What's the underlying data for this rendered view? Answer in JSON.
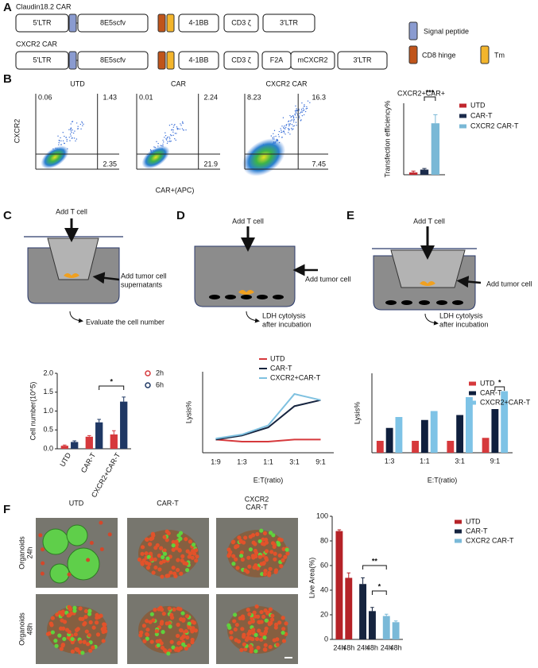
{
  "figure": {
    "panel_labels": [
      "A",
      "B",
      "C",
      "D",
      "E",
      "F"
    ],
    "constructs": [
      {
        "name": "Claudin18.2 CAR",
        "parts": [
          "5'LTR",
          "8E5scfv",
          "4-1BB",
          "CD3 ζ",
          "3'LTR"
        ]
      },
      {
        "name": "CXCR2 CAR",
        "parts": [
          "5'LTR",
          "8E5scfv",
          "4-1BB",
          "CD3 ζ",
          "F2A",
          "mCXCR2",
          "3'LTR"
        ]
      }
    ],
    "construct_legend": [
      "Signal peptide",
      "CD8 hinge",
      "Tm"
    ],
    "flow": {
      "plots": [
        {
          "title": "UTD",
          "quadrants": [
            "0.06",
            "1.43",
            "2.35"
          ]
        },
        {
          "title": "CAR",
          "quadrants": [
            "0.01",
            "2.24",
            "21.9"
          ]
        },
        {
          "title": "CXCR2 CAR",
          "quadrants": [
            "8.23",
            "16.3",
            "7.45"
          ]
        }
      ],
      "y_label": "CXCR2",
      "x_label": "CAR+(APC)"
    },
    "assays": [
      {
        "add_t": "Add T cell",
        "add_tumor": [
          "Add tumor cell",
          "supernatants"
        ],
        "readout": [
          "Evaluate the cell number"
        ]
      },
      {
        "add_t": "Add T cell",
        "add_tumor": [
          "Add tumor cell"
        ],
        "readout": [
          "LDH cytolysis",
          "after incubation"
        ]
      },
      {
        "add_t": "Add T cell",
        "add_tumor": [
          "Add tumor cell"
        ],
        "readout": [
          "LDH cytolysis",
          "after incubation"
        ]
      }
    ],
    "organoids": {
      "columns": [
        [
          "UTD"
        ],
        [
          "CAR-T"
        ],
        [
          "CXCR2",
          "CAR-T"
        ]
      ],
      "rows": [
        [
          "Organoids",
          "24h"
        ],
        [
          "Organoids",
          "48h"
        ]
      ]
    }
  },
  "chart_data": [
    {
      "type": "bar",
      "title": "CXCR2+CAR+",
      "y_label": "Transfection efficiency%",
      "categories": [
        null
      ],
      "ylim": [
        0,
        25
      ],
      "series": [
        {
          "name": "UTD",
          "color": "#c1272d",
          "values": [
            0.8
          ],
          "errors": [
            0.5
          ]
        },
        {
          "name": "CAR-T",
          "color": "#1b2b4b",
          "values": [
            1.8
          ],
          "errors": [
            0.4
          ]
        },
        {
          "name": "CXCR2 CAR-T",
          "color": "#79b8d6",
          "values": [
            18
          ],
          "errors": [
            3
          ]
        }
      ],
      "significance": [
        "***"
      ]
    },
    {
      "type": "bar",
      "y_label": "Cell number(10^5)",
      "categories": [
        "UTD",
        "CAR-T",
        "CXCR2+CAR-T"
      ],
      "ylim": [
        0,
        2
      ],
      "yticks": [
        {
          "value": 0,
          "label": "0.0"
        },
        0.5,
        {
          "value": 1,
          "label": "1.0"
        },
        1.5,
        {
          "value": 2,
          "label": "2.0"
        }
      ],
      "series": [
        {
          "name": "2h",
          "color": "#d6393c",
          "values": [
            0.08,
            0.32,
            0.38
          ],
          "errors": [
            0.02,
            0.03,
            0.1
          ]
        },
        {
          "name": "6h",
          "color": "#1f3864",
          "values": [
            0.18,
            0.7,
            1.25
          ],
          "errors": [
            0.03,
            0.08,
            0.12
          ]
        }
      ],
      "significance": [
        "*"
      ]
    },
    {
      "type": "line",
      "y_label": "Lysis%",
      "x_label": "E:T(ratio)",
      "categories": [
        "1:9",
        "1:3",
        "1:1",
        "3:1",
        "9:1"
      ],
      "ylim": [
        0,
        80
      ],
      "series": [
        {
          "name": "UTD",
          "color": "#d6393c",
          "values": [
            13,
            11,
            11,
            13,
            13
          ]
        },
        {
          "name": "CAR-T",
          "color": "#16243f",
          "values": [
            13,
            17,
            25,
            46,
            52
          ]
        },
        {
          "name": "CXCR2+CAR-T",
          "color": "#7fc1e0",
          "values": [
            14,
            18,
            27,
            58,
            52
          ]
        }
      ]
    },
    {
      "type": "bar",
      "y_label": "Lysis%",
      "x_label": "E:T(ratio)",
      "categories": [
        "1:3",
        "1:1",
        "3:1",
        "9:1"
      ],
      "ylim": [
        0,
        80
      ],
      "series": [
        {
          "name": "UTD",
          "color": "#d6393c",
          "values": [
            12,
            12,
            12,
            15
          ]
        },
        {
          "name": "CAR-T",
          "color": "#0f1f3d",
          "values": [
            25,
            33,
            38,
            44
          ]
        },
        {
          "name": "CXCR2+CAR-T",
          "color": "#7ec3e6",
          "values": [
            36,
            42,
            56,
            62
          ]
        }
      ],
      "significance": [
        "*"
      ]
    },
    {
      "type": "bar",
      "y_label": "Live Area(%)",
      "categories": [
        "24h",
        "48h"
      ],
      "ylim": [
        0,
        100
      ],
      "yticks": [
        0,
        20,
        40,
        60,
        80,
        100
      ],
      "series": [
        {
          "name": "UTD",
          "color": "#b52227",
          "values": [
            88,
            50
          ],
          "errors": [
            1,
            4
          ]
        },
        {
          "name": "CAR-T",
          "color": "#16243f",
          "values": [
            45,
            23
          ],
          "errors": [
            5,
            3
          ]
        },
        {
          "name": "CXCR2 CAR-T",
          "color": "#7ab9d8",
          "values": [
            19,
            14
          ],
          "errors": [
            1.5,
            1
          ]
        }
      ],
      "significance": [
        "**",
        "*"
      ]
    }
  ]
}
